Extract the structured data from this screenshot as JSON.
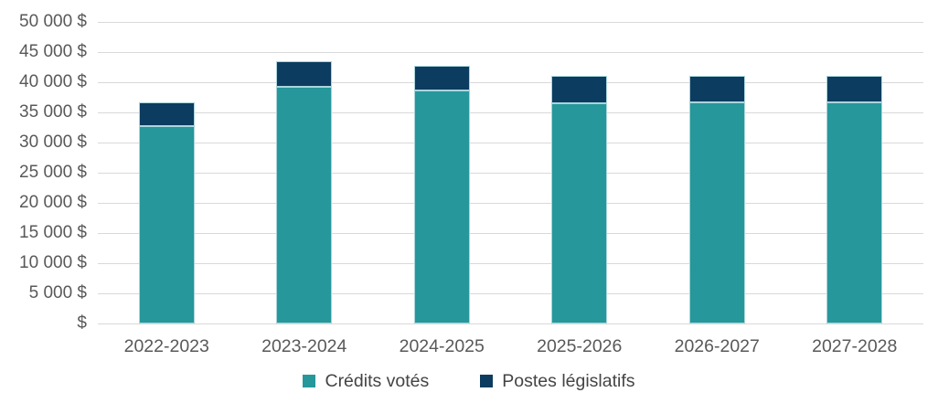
{
  "chart_data": {
    "type": "bar",
    "stacked": true,
    "title": "",
    "xlabel": "",
    "ylabel": "",
    "categories": [
      "2022-2023",
      "2023-2024",
      "2024-2025",
      "2025-2026",
      "2026-2027",
      "2027-2028"
    ],
    "series": [
      {
        "name": "Crédits votés",
        "color": "#26979B",
        "values": [
          32700,
          39300,
          38700,
          36500,
          36600,
          36600
        ]
      },
      {
        "name": "Postes législatifs",
        "color": "#0C3C5F",
        "values": [
          4000,
          4200,
          4100,
          4500,
          4500,
          4500
        ]
      }
    ],
    "totals": [
      36700,
      43500,
      42800,
      41000,
      41100,
      41100
    ],
    "ylim": [
      0,
      50000
    ],
    "y_tick_step": 5000,
    "y_tick_labels": [
      "$",
      "5 000 $",
      "10 000 $",
      "15 000 $",
      "20 000 $",
      "25 000 $",
      "30 000 $",
      "35 000 $",
      "40 000 $",
      "45 000 $",
      "50 000 $"
    ],
    "grid": true,
    "legend_position": "bottom",
    "colors": {
      "gridline": "#D9D9D9",
      "axis_text": "#595959",
      "legend_text": "#444444",
      "bar_outline": "#AAD5DC",
      "background": "#FFFFFF"
    }
  }
}
